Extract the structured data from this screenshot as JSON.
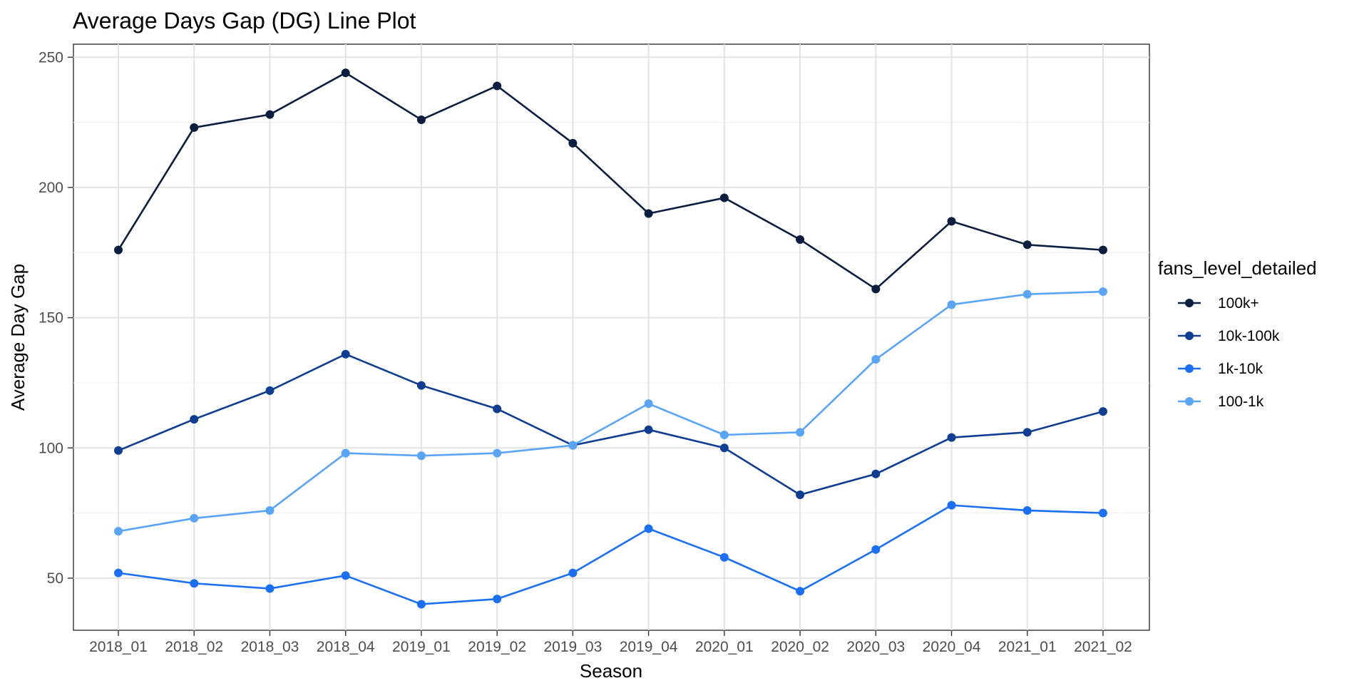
{
  "chart_data": {
    "type": "line",
    "title": "Average Days Gap (DG) Line Plot",
    "xlabel": "Season",
    "ylabel": "Average Day Gap",
    "categories": [
      "2018_01",
      "2018_02",
      "2018_03",
      "2018_04",
      "2019_01",
      "2019_02",
      "2019_03",
      "2019_04",
      "2020_01",
      "2020_02",
      "2020_03",
      "2020_04",
      "2021_01",
      "2021_02"
    ],
    "ylim": [
      30,
      255
    ],
    "yticks": [
      50,
      100,
      150,
      200,
      250
    ],
    "grid": true,
    "legend": {
      "title": "fans_level_detailed",
      "position": "right"
    },
    "series": [
      {
        "name": "100k+",
        "color": "#0b1e3f",
        "values": [
          176,
          223,
          228,
          244,
          226,
          239,
          217,
          190,
          196,
          180,
          161,
          187,
          178,
          176
        ]
      },
      {
        "name": "10k-100k",
        "color": "#0f3d91",
        "values": [
          99,
          111,
          122,
          136,
          124,
          115,
          101,
          107,
          100,
          82,
          90,
          104,
          106,
          114
        ]
      },
      {
        "name": "1k-10k",
        "color": "#1a6ff2",
        "values": [
          52,
          48,
          46,
          51,
          40,
          42,
          52,
          69,
          58,
          45,
          61,
          78,
          76,
          75
        ]
      },
      {
        "name": "100-1k",
        "color": "#5aa4f5",
        "values": [
          68,
          73,
          76,
          98,
          97,
          98,
          101,
          117,
          105,
          106,
          134,
          155,
          159,
          160
        ]
      }
    ]
  }
}
